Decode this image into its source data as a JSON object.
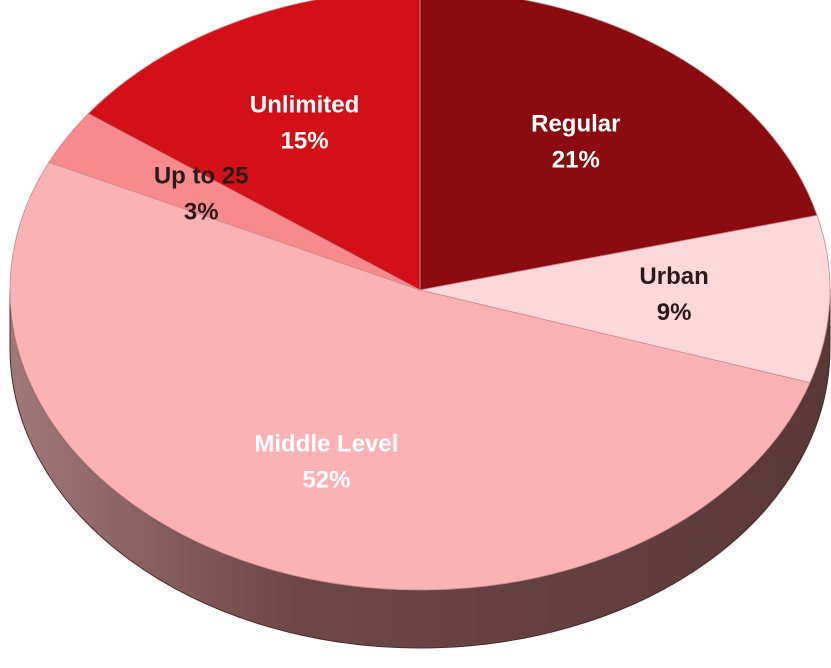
{
  "chart_data": {
    "type": "pie",
    "categories": [
      "Regular",
      "Urban",
      "Middle Level",
      "Up to 25",
      "Unlimited"
    ],
    "values": [
      21,
      9,
      52,
      3,
      15
    ],
    "value_labels": [
      "21%",
      "9%",
      "52%",
      "3%",
      "15%"
    ],
    "colors": [
      "#8b0c10",
      "#fdd8da",
      "#fbb2b4",
      "#f78a8d",
      "#d31018"
    ],
    "label_colors": [
      "#ffffff",
      "#2a1a1a",
      "#ffffff",
      "#2a1a1a",
      "#ffffff"
    ]
  }
}
